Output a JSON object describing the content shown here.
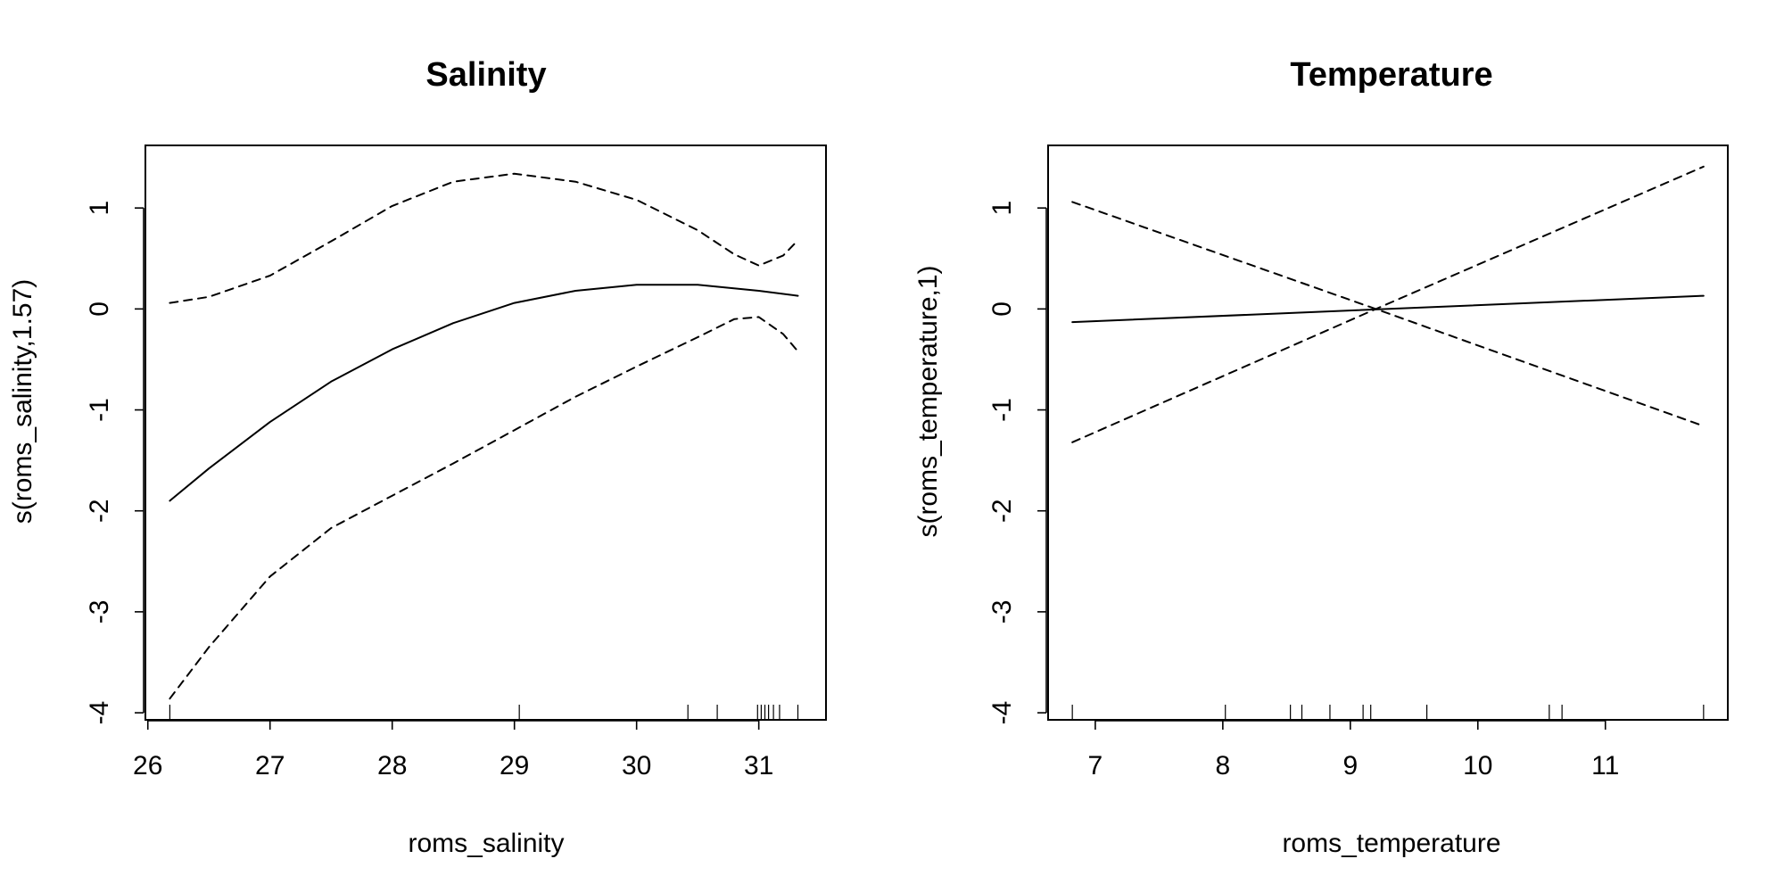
{
  "chart_data": [
    {
      "type": "line",
      "title": "Salinity",
      "xlabel": "roms_salinity",
      "ylabel": "s(roms_salinity,1.57)",
      "xlim": [
        25.98,
        31.55
      ],
      "ylim": [
        -4.07,
        1.62
      ],
      "xticks": [
        26,
        27,
        28,
        29,
        30,
        31
      ],
      "yticks": [
        -4,
        -3,
        -2,
        -1,
        0,
        1
      ],
      "rug": [
        26.18,
        29.04,
        30.42,
        30.66,
        30.99,
        31.02,
        31.05,
        31.08,
        31.12,
        31.17,
        31.32
      ],
      "series": [
        {
          "style": "solid",
          "x": [
            26.18,
            26.5,
            27.0,
            27.5,
            28.0,
            28.5,
            29.0,
            29.5,
            30.0,
            30.5,
            31.0,
            31.32
          ],
          "y": [
            -1.9,
            -1.58,
            -1.12,
            -0.72,
            -0.4,
            -0.14,
            0.06,
            0.18,
            0.24,
            0.24,
            0.18,
            0.13
          ]
        },
        {
          "style": "dashed",
          "x": [
            26.18,
            26.5,
            27.0,
            27.5,
            28.0,
            28.5,
            29.0,
            29.5,
            30.0,
            30.5,
            30.8,
            31.0,
            31.2,
            31.32
          ],
          "y": [
            0.06,
            0.12,
            0.33,
            0.67,
            1.02,
            1.26,
            1.34,
            1.26,
            1.08,
            0.78,
            0.54,
            0.43,
            0.53,
            0.68
          ]
        },
        {
          "style": "dashed",
          "x": [
            26.18,
            26.5,
            27.0,
            27.5,
            28.0,
            28.5,
            29.0,
            29.5,
            30.0,
            30.5,
            30.8,
            31.0,
            31.2,
            31.32
          ],
          "y": [
            -3.86,
            -3.35,
            -2.65,
            -2.17,
            -1.85,
            -1.53,
            -1.2,
            -0.87,
            -0.57,
            -0.28,
            -0.1,
            -0.08,
            -0.25,
            -0.42
          ]
        }
      ]
    },
    {
      "type": "line",
      "title": "Temperature",
      "xlabel": "roms_temperature",
      "ylabel": "s(roms_temperature,1)",
      "xlim": [
        6.63,
        11.96
      ],
      "ylim": [
        -4.07,
        1.62
      ],
      "xticks": [
        7,
        8,
        9,
        10,
        11
      ],
      "yticks": [
        -4,
        -3,
        -2,
        -1,
        0,
        1
      ],
      "rug": [
        6.82,
        8.02,
        8.53,
        8.62,
        8.84,
        9.1,
        9.16,
        9.6,
        10.56,
        10.66,
        11.77
      ],
      "series": [
        {
          "style": "solid",
          "x": [
            6.82,
            11.77
          ],
          "y": [
            -0.13,
            0.13
          ]
        },
        {
          "style": "dashed",
          "x": [
            6.82,
            9.2,
            11.77
          ],
          "y": [
            1.06,
            0.0,
            -1.16
          ]
        },
        {
          "style": "dashed",
          "x": [
            6.82,
            9.2,
            11.77
          ],
          "y": [
            -1.32,
            0.0,
            1.41
          ]
        }
      ]
    }
  ]
}
